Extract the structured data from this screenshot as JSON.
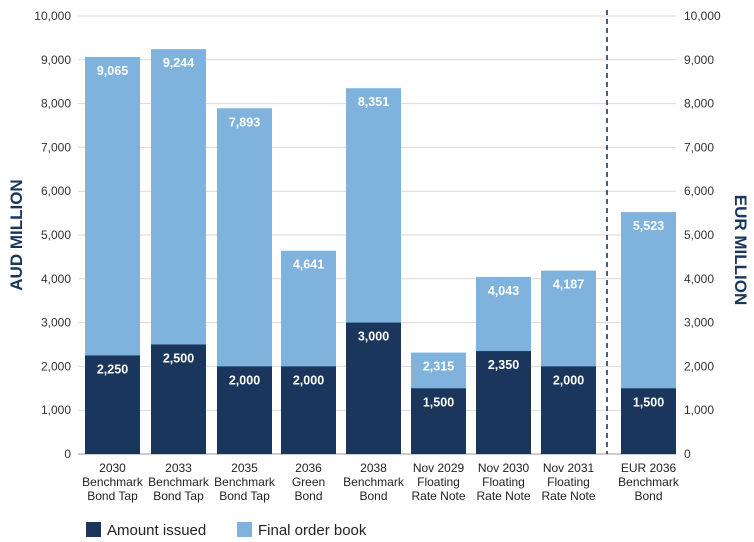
{
  "chart_data": {
    "type": "bar",
    "stacked": true,
    "categories": [
      [
        "2030",
        "Benchmark",
        "Bond Tap"
      ],
      [
        "2033",
        "Benchmark",
        "Bond Tap"
      ],
      [
        "2035",
        "Benchmark",
        "Bond Tap"
      ],
      [
        "2036",
        "Green",
        "Bond"
      ],
      [
        "2038",
        "Benchmark",
        "Bond"
      ],
      [
        "Nov 2029",
        "Floating",
        "Rate Note"
      ],
      [
        "Nov 2030",
        "Floating",
        "Rate Note"
      ],
      [
        "Nov 2031",
        "Floating",
        "Rate Note"
      ],
      [
        "EUR 2036",
        "Benchmark",
        "Bond"
      ]
    ],
    "series": [
      {
        "name": "Amount issued",
        "color": "#1b365d",
        "values": [
          2250,
          2500,
          2000,
          2000,
          3000,
          1500,
          2350,
          2000,
          1500
        ],
        "labels": [
          "2,250",
          "2,500",
          "2,000",
          "2,000",
          "3,000",
          "1,500",
          "2,350",
          "2,000",
          "1,500"
        ]
      },
      {
        "name": "Final order book",
        "color": "#7fb2dc",
        "totals": [
          9065,
          9244,
          7893,
          4641,
          8351,
          2315,
          4043,
          4187,
          5523
        ],
        "labels": [
          "9,065",
          "9,244",
          "7,893",
          "4,641",
          "8,351",
          "2,315",
          "4,043",
          "4,187",
          "5,523"
        ]
      }
    ],
    "ylabel": "AUD MILLION",
    "y2label": "EUR MILLION",
    "ylim": [
      0,
      10000
    ],
    "y2lim": [
      0,
      10000
    ],
    "yticks": [
      "0",
      "1,000",
      "2,000",
      "3,000",
      "4,000",
      "5,000",
      "6,000",
      "7,000",
      "8,000",
      "9,000",
      "10,000"
    ],
    "right_axis_categories_from_index": 8,
    "grid": true,
    "legend": "bottom-left",
    "axis_title_color": "#1b365d"
  }
}
